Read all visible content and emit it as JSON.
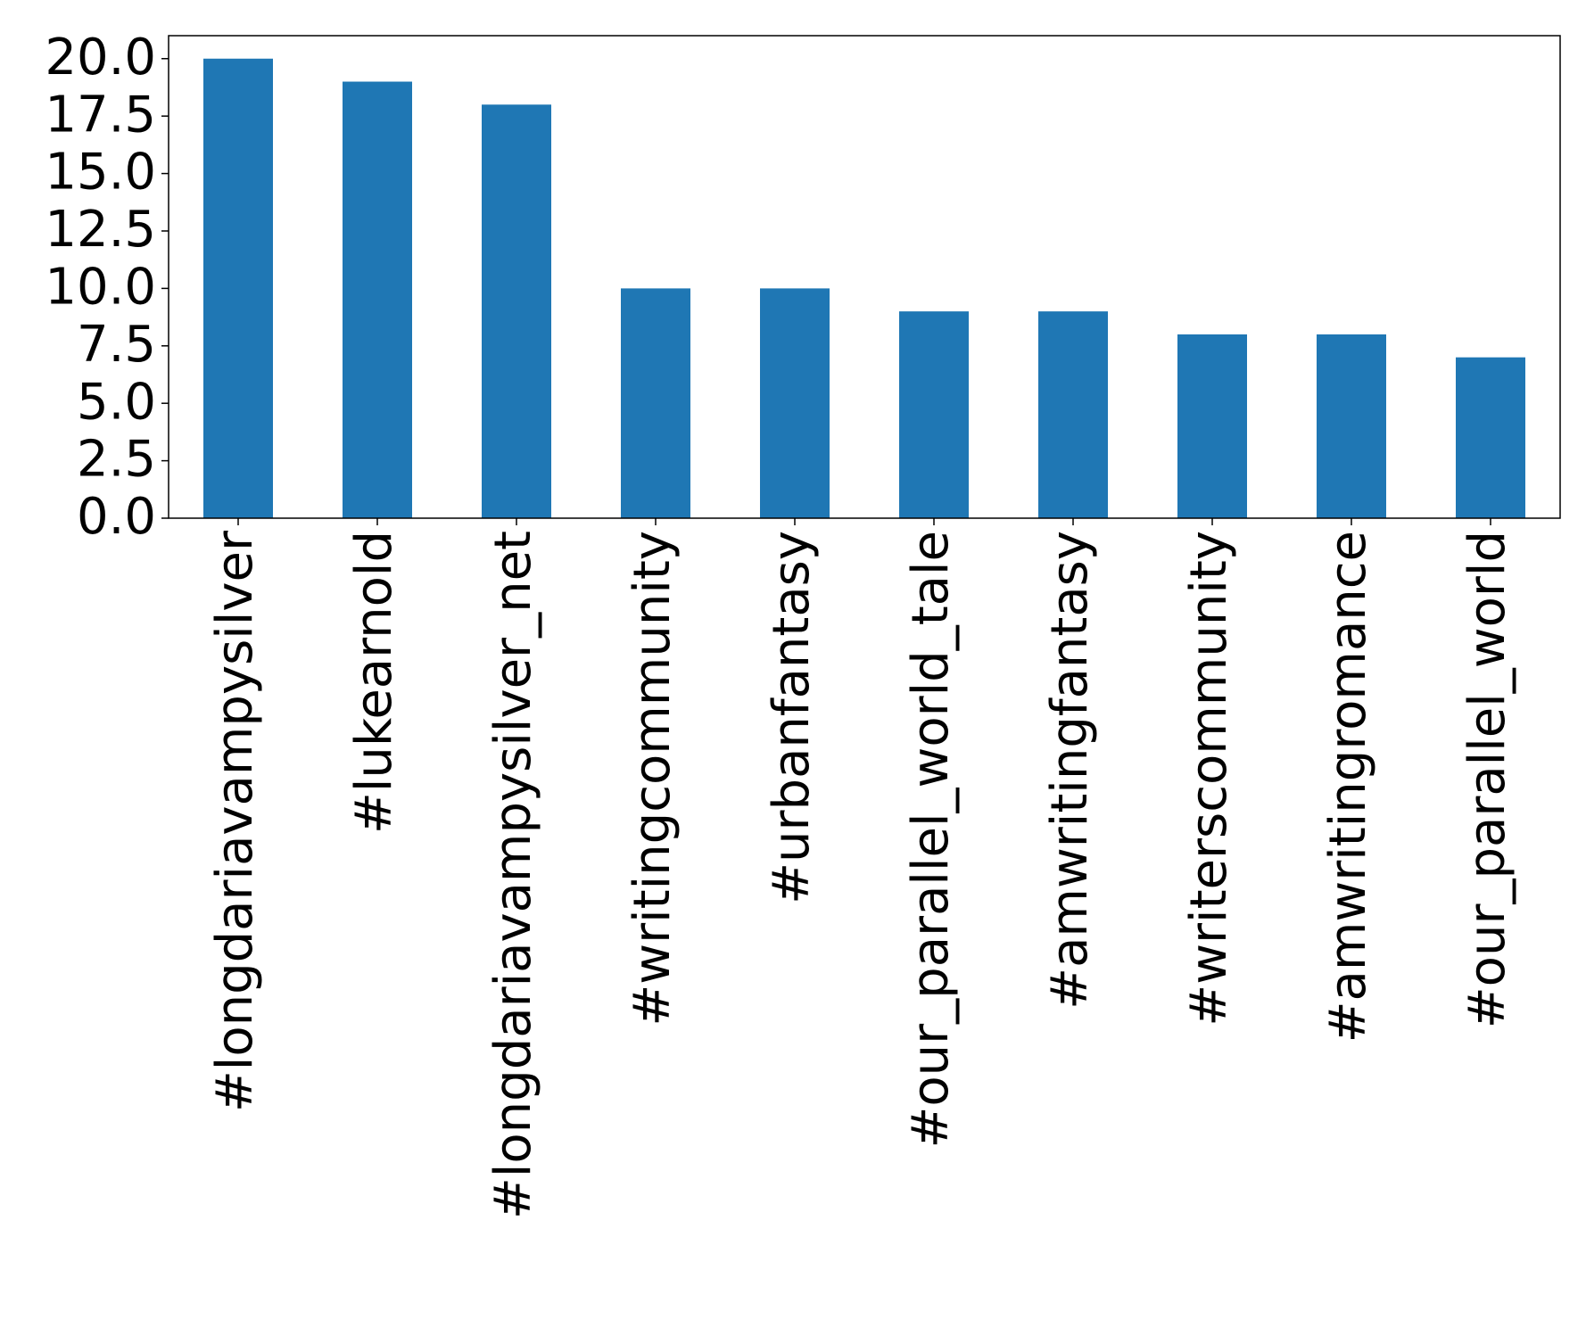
{
  "chart_data": {
    "type": "bar",
    "categories": [
      "#longdariavampysilver",
      "#lukearnold",
      "#longdariavampysilver_net",
      "#writingcommunity",
      "#urbanfantasy",
      "#our_parallel_world_tale",
      "#amwritingfantasy",
      "#writerscommunity",
      "#amwritingromance",
      "#our_parallel_world"
    ],
    "values": [
      20,
      19,
      18,
      10,
      10,
      9,
      9,
      8,
      8,
      7
    ],
    "color": "#1f77b4",
    "ylim": [
      0,
      21
    ],
    "yticks": [
      {
        "value": 0,
        "label": "0.0"
      },
      2.5,
      {
        "value": 5,
        "label": "5.0"
      },
      7.5,
      {
        "value": 10,
        "label": "10.0"
      },
      12.5,
      {
        "value": 15,
        "label": "15.0"
      },
      17.5,
      {
        "value": 20,
        "label": "20.0"
      }
    ],
    "grid": false
  }
}
